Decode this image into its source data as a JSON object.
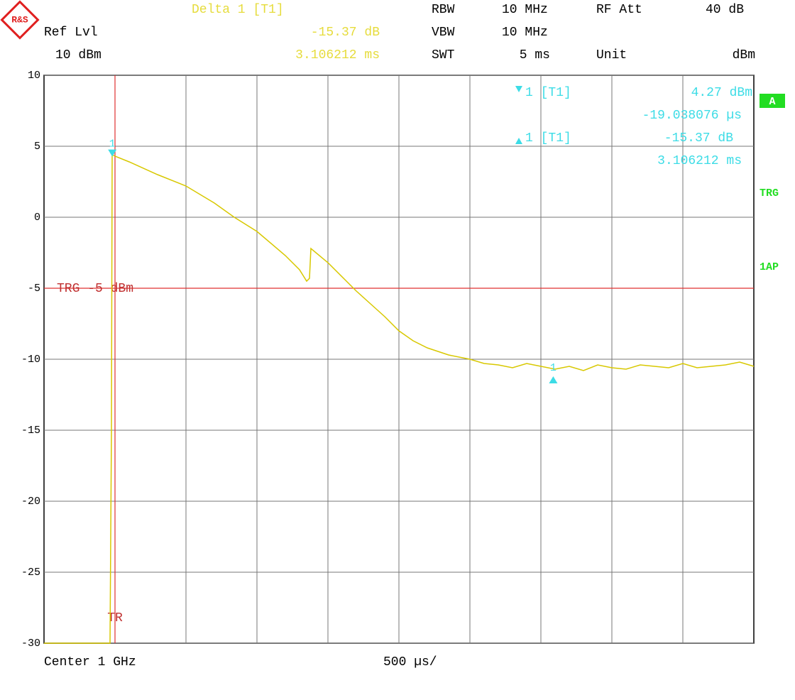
{
  "chart_data": {
    "type": "line",
    "header": {
      "delta": "Delta 1 [T1]",
      "delta_level": "-15.37 dB",
      "delta_time": "3.106212 ms",
      "ref_lvl": "Ref Lvl",
      "ref_value": "10 dBm",
      "rbw": "RBW",
      "rbw_value": "10 MHz",
      "vbw": "VBW",
      "vbw_value": "10 MHz",
      "swt": "SWT",
      "swt_value": "5 ms",
      "rf_att": "RF Att",
      "rf_att_value": "40 dB",
      "unit": "Unit",
      "unit_value": "dBm"
    },
    "marker_info": {
      "m1": "1 [T1]",
      "m1_level": "4.27 dBm",
      "m1_time": "-19.038076 µs",
      "d1": "1 [T1]",
      "d1_level": "-15.37 dB",
      "d1_time": "3.106212 ms"
    },
    "side_labels": {
      "trace": "A",
      "trg": "TRG",
      "detector": "1AP"
    },
    "footer": {
      "center": "Center 1 GHz",
      "span": "500 µs/"
    },
    "trigger": {
      "label": "TRG -5 dBm",
      "level": -5,
      "time_label": "TR",
      "time": 0.5
    },
    "x": [
      0,
      0.465,
      0.475,
      0.48,
      0.5,
      0.6,
      0.8,
      1.0,
      1.2,
      1.34,
      1.5,
      1.7,
      1.8,
      1.85,
      1.87,
      1.88,
      2.0,
      2.2,
      2.3,
      2.4,
      2.5,
      2.6,
      2.7,
      2.85,
      3.0,
      3.1,
      3.2,
      3.3,
      3.4,
      3.5,
      3.6,
      3.7,
      3.8,
      3.9,
      4.0,
      4.1,
      4.2,
      4.3,
      4.4,
      4.5,
      4.6,
      4.7,
      4.8,
      4.9,
      5.0
    ],
    "series": [
      {
        "name": "Trace 1",
        "color": "#d8c800",
        "values": [
          -30,
          -30,
          -15,
          4.4,
          4.3,
          3.9,
          3.0,
          2.2,
          1.0,
          0,
          -1,
          -2.7,
          -3.7,
          -4.5,
          -4.3,
          -2.2,
          -3.2,
          -5.2,
          -6.1,
          -7,
          -8,
          -8.7,
          -9.2,
          -9.7,
          -10,
          -10.3,
          -10.4,
          -10.6,
          -10.3,
          -10.5,
          -10.7,
          -10.5,
          -10.8,
          -10.4,
          -10.6,
          -10.7,
          -10.4,
          -10.5,
          -10.6,
          -10.3,
          -10.6,
          -10.5,
          -10.4,
          -10.2,
          -10.5
        ]
      }
    ],
    "markers": [
      {
        "label": "1",
        "x": 0.481,
        "value": 4.27
      },
      {
        "label": "1",
        "x": 3.587,
        "value": -11.1
      }
    ],
    "xlim": [
      0,
      5
    ],
    "ylim": [
      -30,
      10
    ],
    "yticks": [
      10,
      5,
      0,
      -5,
      -10,
      -15,
      -20,
      -25,
      -30
    ],
    "grid": true
  }
}
